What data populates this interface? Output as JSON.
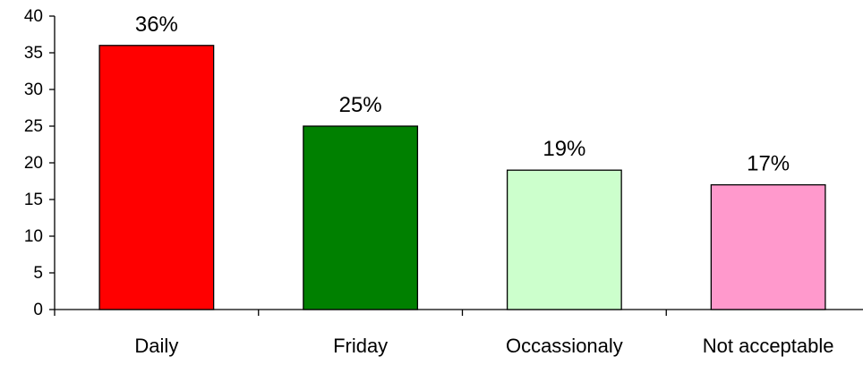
{
  "chart_data": {
    "type": "bar",
    "categories": [
      "Daily",
      "Friday",
      "Occassionaly",
      "Not acceptable"
    ],
    "values": [
      36,
      25,
      19,
      17
    ],
    "data_labels": [
      "36%",
      "25%",
      "19%",
      "17%"
    ],
    "colors": [
      "#ff0000",
      "#008000",
      "#ccffcc",
      "#ff99cc"
    ],
    "ylim": [
      0,
      40
    ],
    "yticks": [
      0,
      5,
      10,
      15,
      20,
      25,
      30,
      35,
      40
    ],
    "grid": false,
    "legend": "none"
  }
}
